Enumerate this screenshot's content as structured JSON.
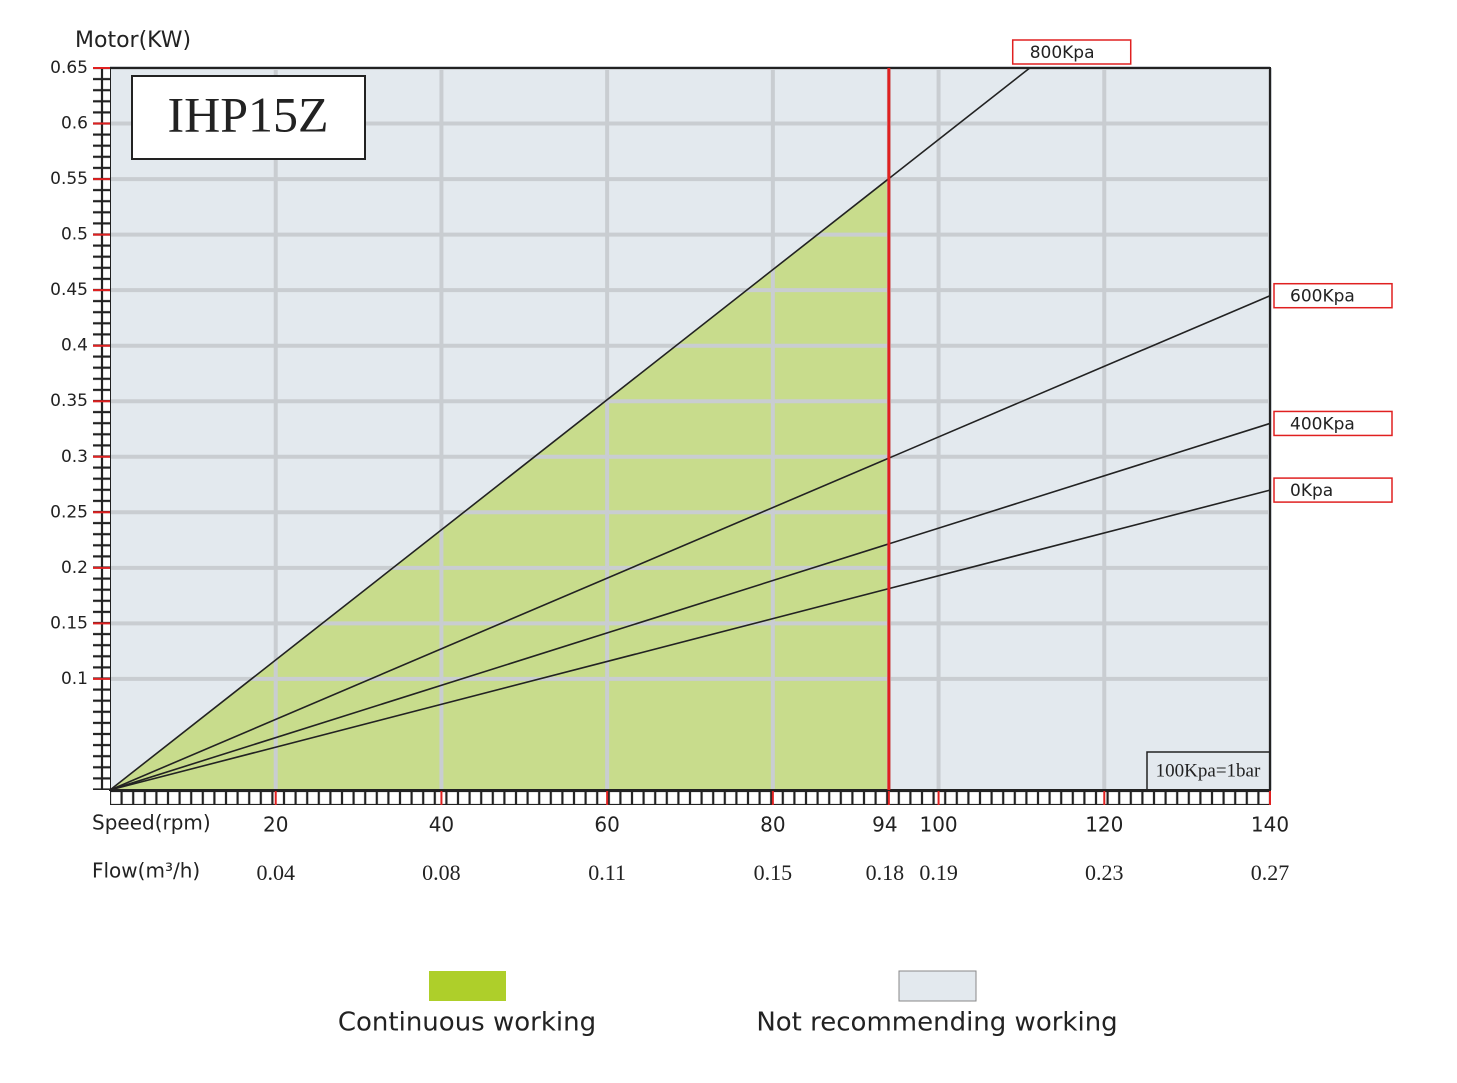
{
  "chart_data": {
    "type": "line",
    "model": "IHP15Z",
    "y_label": "Motor(KW)",
    "x_label": "Speed(rpm)",
    "x2_label": "Flow(m³/h)",
    "note": "100Kpa=1bar",
    "xlim": [
      0,
      140
    ],
    "ylim": [
      0,
      0.65
    ],
    "xticks": [
      20,
      40,
      60,
      80,
      94,
      100,
      120,
      140
    ],
    "flow": [
      0.04,
      0.08,
      0.11,
      0.15,
      0.18,
      0.19,
      0.23,
      0.27
    ],
    "yticks": [
      0.1,
      0.15,
      0.2,
      0.25,
      0.3,
      0.35,
      0.4,
      0.45,
      0.5,
      0.55,
      0.6,
      0.65
    ],
    "grid": true,
    "limit_x": 94,
    "series": [
      {
        "name": "800Kpa",
        "color": "#222222",
        "x": [
          0,
          111
        ],
        "values": [
          0,
          0.65
        ]
      },
      {
        "name": "600Kpa",
        "color": "#222222",
        "x": [
          0,
          140
        ],
        "values": [
          0,
          0.445
        ]
      },
      {
        "name": "400Kpa",
        "color": "#222222",
        "x": [
          0,
          140
        ],
        "values": [
          0,
          0.33
        ]
      },
      {
        "name": "0Kpa",
        "color": "#222222",
        "x": [
          0,
          140
        ],
        "values": [
          0,
          0.27
        ]
      }
    ],
    "legend": [
      {
        "name": "Continuous working",
        "color": "#aecf2a"
      },
      {
        "name": "Not recommending working",
        "color": "#e3e9ee"
      }
    ]
  }
}
